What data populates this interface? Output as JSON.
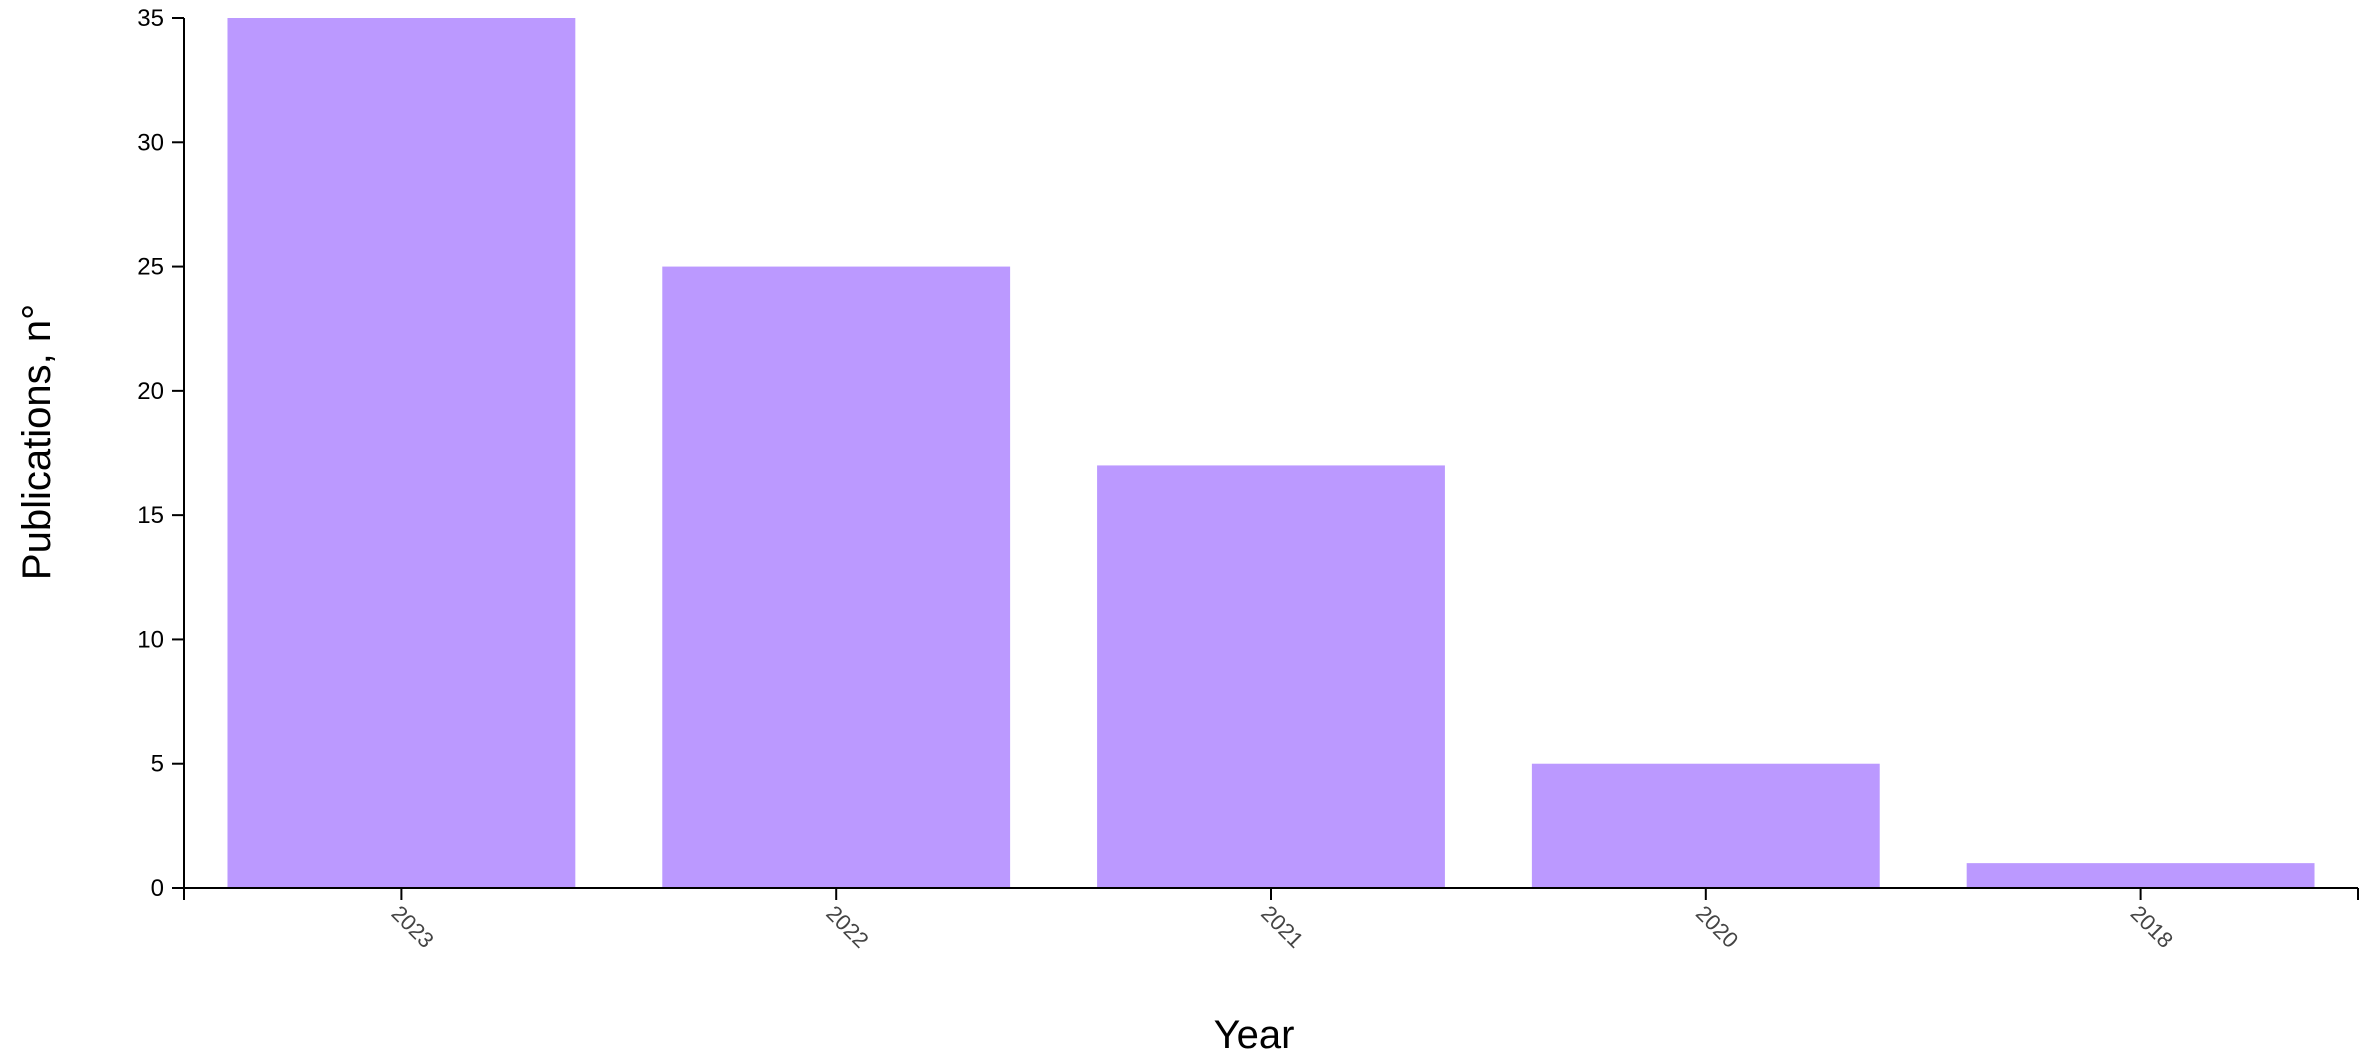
{
  "chart_data": {
    "type": "bar",
    "categories": [
      "2023",
      "2022",
      "2021",
      "2020",
      "2018"
    ],
    "values": [
      35,
      25,
      17,
      5,
      1
    ],
    "xlabel": "Year",
    "ylabel": "Publications, n°",
    "ylim": [
      0,
      35
    ],
    "yticks": [
      0,
      5,
      10,
      15,
      20,
      25,
      30,
      35
    ],
    "grid": false,
    "legend": "none",
    "colors": {
      "bar": "#bb99ff",
      "axis": "#000000",
      "x_tick_text": "#444444"
    }
  }
}
